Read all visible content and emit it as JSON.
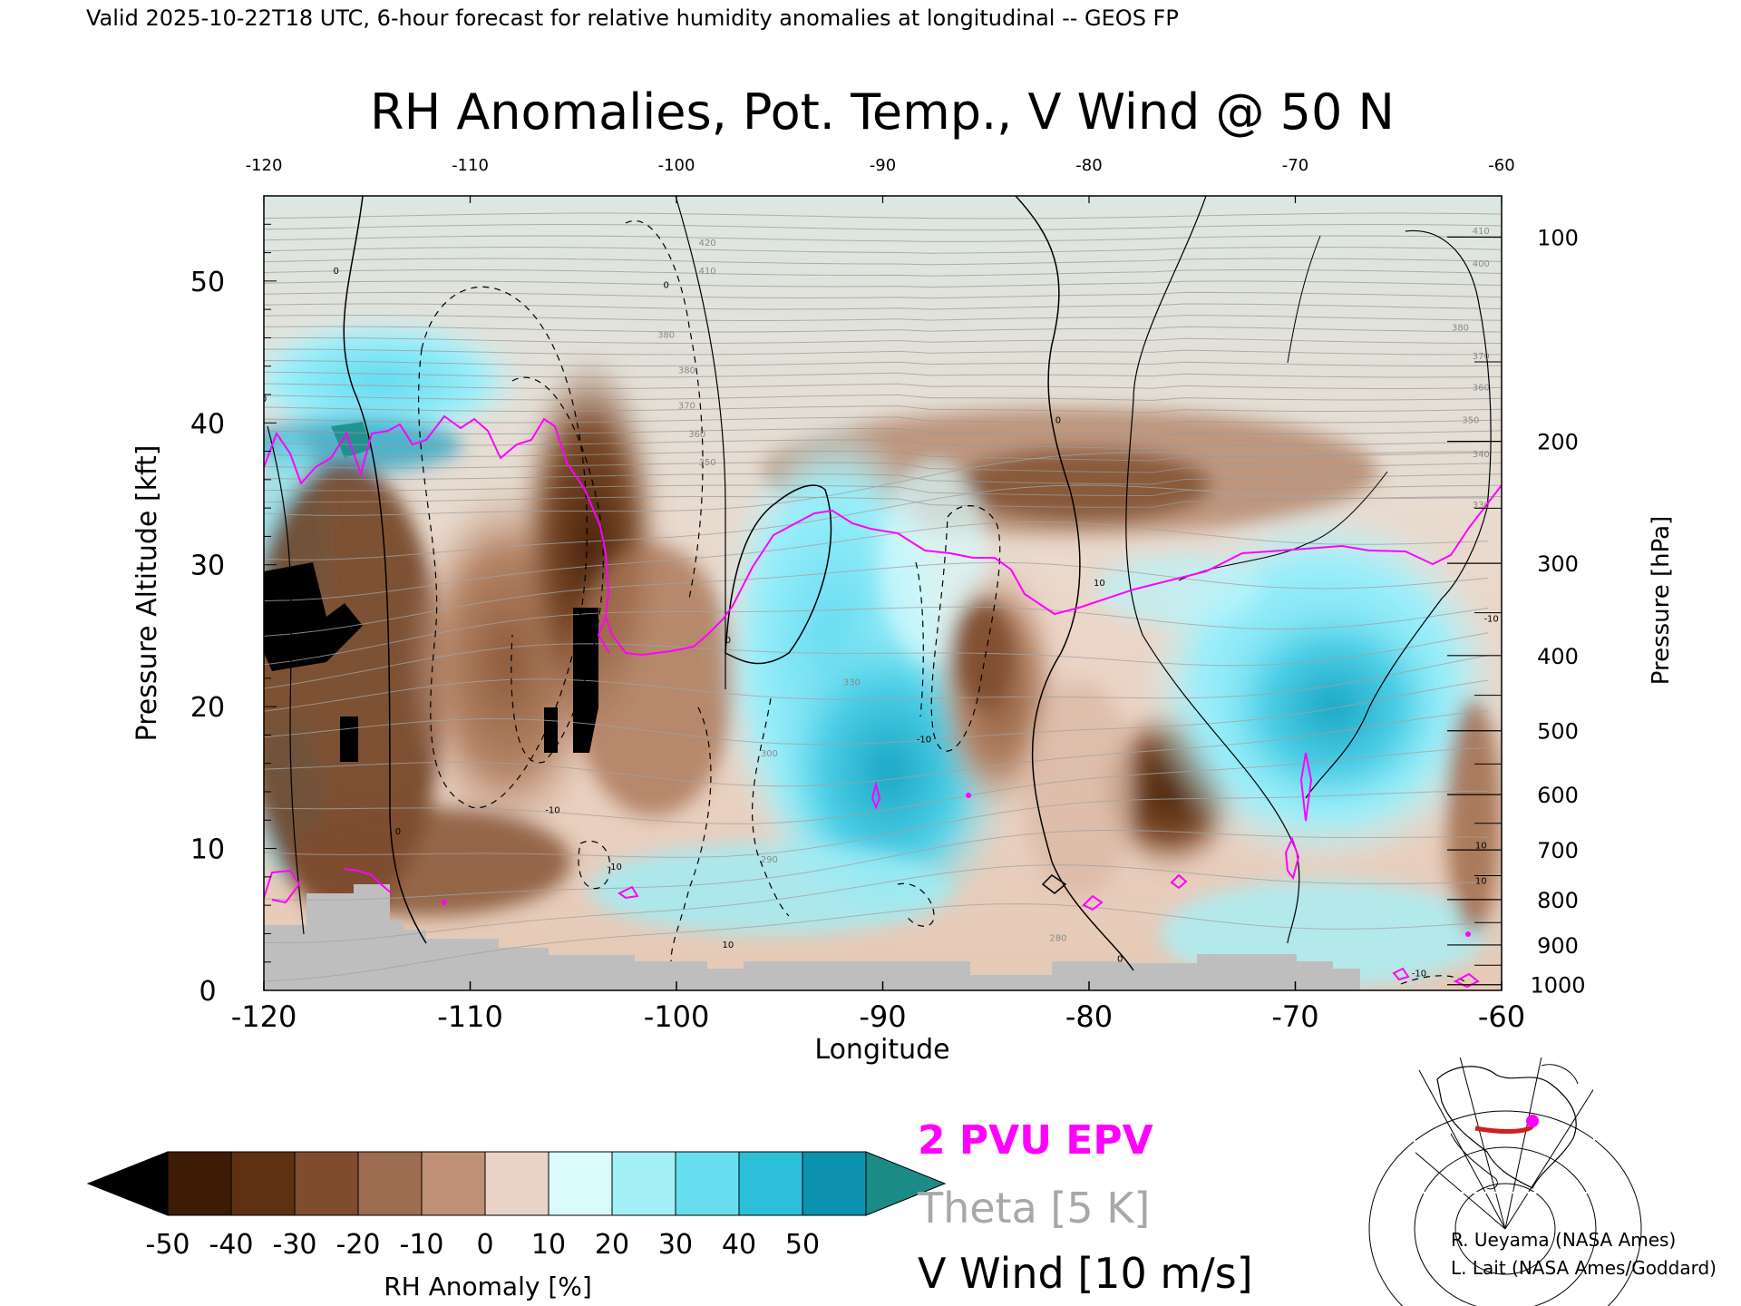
{
  "chart_data": {
    "type": "heatmap",
    "header": "Valid 2025-10-22T18 UTC, 6-hour forecast for relative humidity anomalies at longitudinal -- GEOS FP",
    "title": "RH Anomalies, Pot. Temp., V Wind @ 50 N",
    "xlabel": "Longitude",
    "ylabel": "Pressure Altitude [kft]",
    "y2label": "Pressure [hPa]",
    "xlim": [
      -120,
      -60
    ],
    "ylim": [
      0,
      56
    ],
    "x_ticks": [
      "-120",
      "-110",
      "-100",
      "-90",
      "-80",
      "-70",
      "-60"
    ],
    "x_ticks_top": [
      "-120",
      "-110",
      "-100",
      "-90",
      "-80",
      "-70",
      "-60"
    ],
    "y_ticks": [
      "0",
      "10",
      "20",
      "30",
      "40",
      "50"
    ],
    "pressure_ticks": [
      {
        "label": "100",
        "kft": 53.1
      },
      {
        "label": "200",
        "kft": 38.7
      },
      {
        "label": "300",
        "kft": 30.1
      },
      {
        "label": "400",
        "kft": 23.6
      },
      {
        "label": "500",
        "kft": 18.3
      },
      {
        "label": "600",
        "kft": 13.8
      },
      {
        "label": "700",
        "kft": 9.9
      },
      {
        "label": "800",
        "kft": 6.4
      },
      {
        "label": "900",
        "kft": 3.2
      },
      {
        "label": "1000",
        "kft": 0.4
      }
    ],
    "colorbar": {
      "label": "RH Anomaly [%]",
      "ticks": [
        "-50",
        "-40",
        "-30",
        "-20",
        "-10",
        "0",
        "10",
        "20",
        "30",
        "40",
        "50"
      ],
      "colors": [
        "#3d1b04",
        "#5e3112",
        "#7f4c2d",
        "#9e6c50",
        "#c09076",
        "#e8d3c6",
        "#d9fbfc",
        "#a3f0f7",
        "#66def0",
        "#2bbfda",
        "#0c91ae"
      ],
      "under_color": "#000000",
      "over_color": "#1a8c85"
    },
    "legend": [
      {
        "label": "2 PVU EPV",
        "color": "#ff00ff"
      },
      {
        "label": "Theta [5 K]",
        "color": "#a8a8a8"
      },
      {
        "label": "V Wind [10 m/s]",
        "color": "#000000"
      }
    ],
    "theta_labels": [
      {
        "text": "420",
        "x": -98.5,
        "y": 52.5
      },
      {
        "text": "410",
        "x": -98.5,
        "y": 50.5
      },
      {
        "text": "380",
        "x": -100.5,
        "y": 46.0
      },
      {
        "text": "380",
        "x": -99.5,
        "y": 43.5
      },
      {
        "text": "370",
        "x": -99.5,
        "y": 41.0
      },
      {
        "text": "360",
        "x": -99.0,
        "y": 39.0
      },
      {
        "text": "350",
        "x": -98.5,
        "y": 37.0
      },
      {
        "text": "330",
        "x": -91.5,
        "y": 21.5
      },
      {
        "text": "300",
        "x": -95.5,
        "y": 16.5
      },
      {
        "text": "290",
        "x": -95.5,
        "y": 9.0
      },
      {
        "text": "280",
        "x": -81.5,
        "y": 3.5
      },
      {
        "text": "410",
        "x": -61.0,
        "y": 53.3
      },
      {
        "text": "400",
        "x": -61.0,
        "y": 51.0
      },
      {
        "text": "380",
        "x": -62.0,
        "y": 46.5
      },
      {
        "text": "370",
        "x": -61.0,
        "y": 44.5
      },
      {
        "text": "360",
        "x": -61.0,
        "y": 42.3
      },
      {
        "text": "350",
        "x": -61.5,
        "y": 40.0
      },
      {
        "text": "340",
        "x": -61.0,
        "y": 37.6
      },
      {
        "text": "330",
        "x": -61.0,
        "y": 34.0
      }
    ],
    "wind_labels": [
      {
        "text": "0",
        "x": -116.5,
        "y": 50.5
      },
      {
        "text": "0",
        "x": -120.0,
        "y": 41.5
      },
      {
        "text": "-10",
        "x": -106.0,
        "y": 12.5
      },
      {
        "text": "0",
        "x": -113.5,
        "y": 11.0
      },
      {
        "text": "0",
        "x": -100.5,
        "y": 49.5
      },
      {
        "text": "0",
        "x": -97.5,
        "y": 24.5
      },
      {
        "text": "-10",
        "x": -103.0,
        "y": 8.5
      },
      {
        "text": "10",
        "x": -97.5,
        "y": 3.0
      },
      {
        "text": "-10",
        "x": -88.0,
        "y": 17.5
      },
      {
        "text": "0",
        "x": -81.5,
        "y": 40.0
      },
      {
        "text": "10",
        "x": -79.5,
        "y": 28.5
      },
      {
        "text": "0",
        "x": -78.5,
        "y": 2.0
      },
      {
        "text": "-10",
        "x": -64.0,
        "y": 1.0
      },
      {
        "text": "10",
        "x": -61.0,
        "y": 10.0
      },
      {
        "text": "10",
        "x": -61.0,
        "y": 7.5
      },
      {
        "text": "-10",
        "x": -60.5,
        "y": 26.0
      }
    ]
  },
  "inset_map_caption": "",
  "credits": [
    "R. Ueyama (NASA Ames)",
    "L. Lait (NASA Ames/Goddard)"
  ]
}
